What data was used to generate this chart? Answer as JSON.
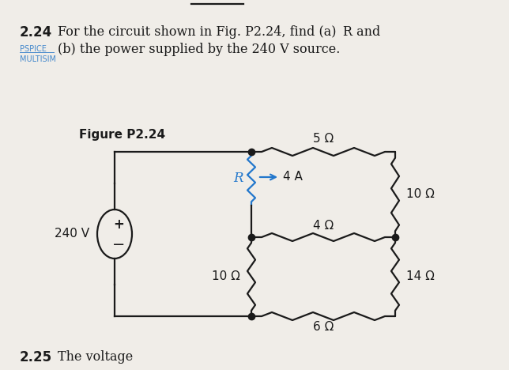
{
  "title_number": "2.24",
  "title_text": "For the circuit shown in Fig. P2.24, find (a)  R and",
  "title_text2": "(b) the power supplied by the 240 V source.",
  "pspice_label": "PSPICE",
  "multisim_label": "MULTISIM",
  "figure_label": "Figure P2.24",
  "voltage_source": "240 V",
  "R_label": "R",
  "R1_label": "10 Ω",
  "R2_label": "5 Ω",
  "R4_label": "4 Ω",
  "R5_label": "6 Ω",
  "R6_label": "10 Ω",
  "R7_label": "14 Ω",
  "current_label": "4 A",
  "bg_color": "#f0ede8",
  "wire_color": "#1a1a1a",
  "current_arrow_color": "#2277cc",
  "R_label_color": "#2277cc",
  "pspice_color": "#4488cc",
  "text_color": "#1a1a1a",
  "bottom_text": "2.25",
  "bottom_text2": "The voltage"
}
